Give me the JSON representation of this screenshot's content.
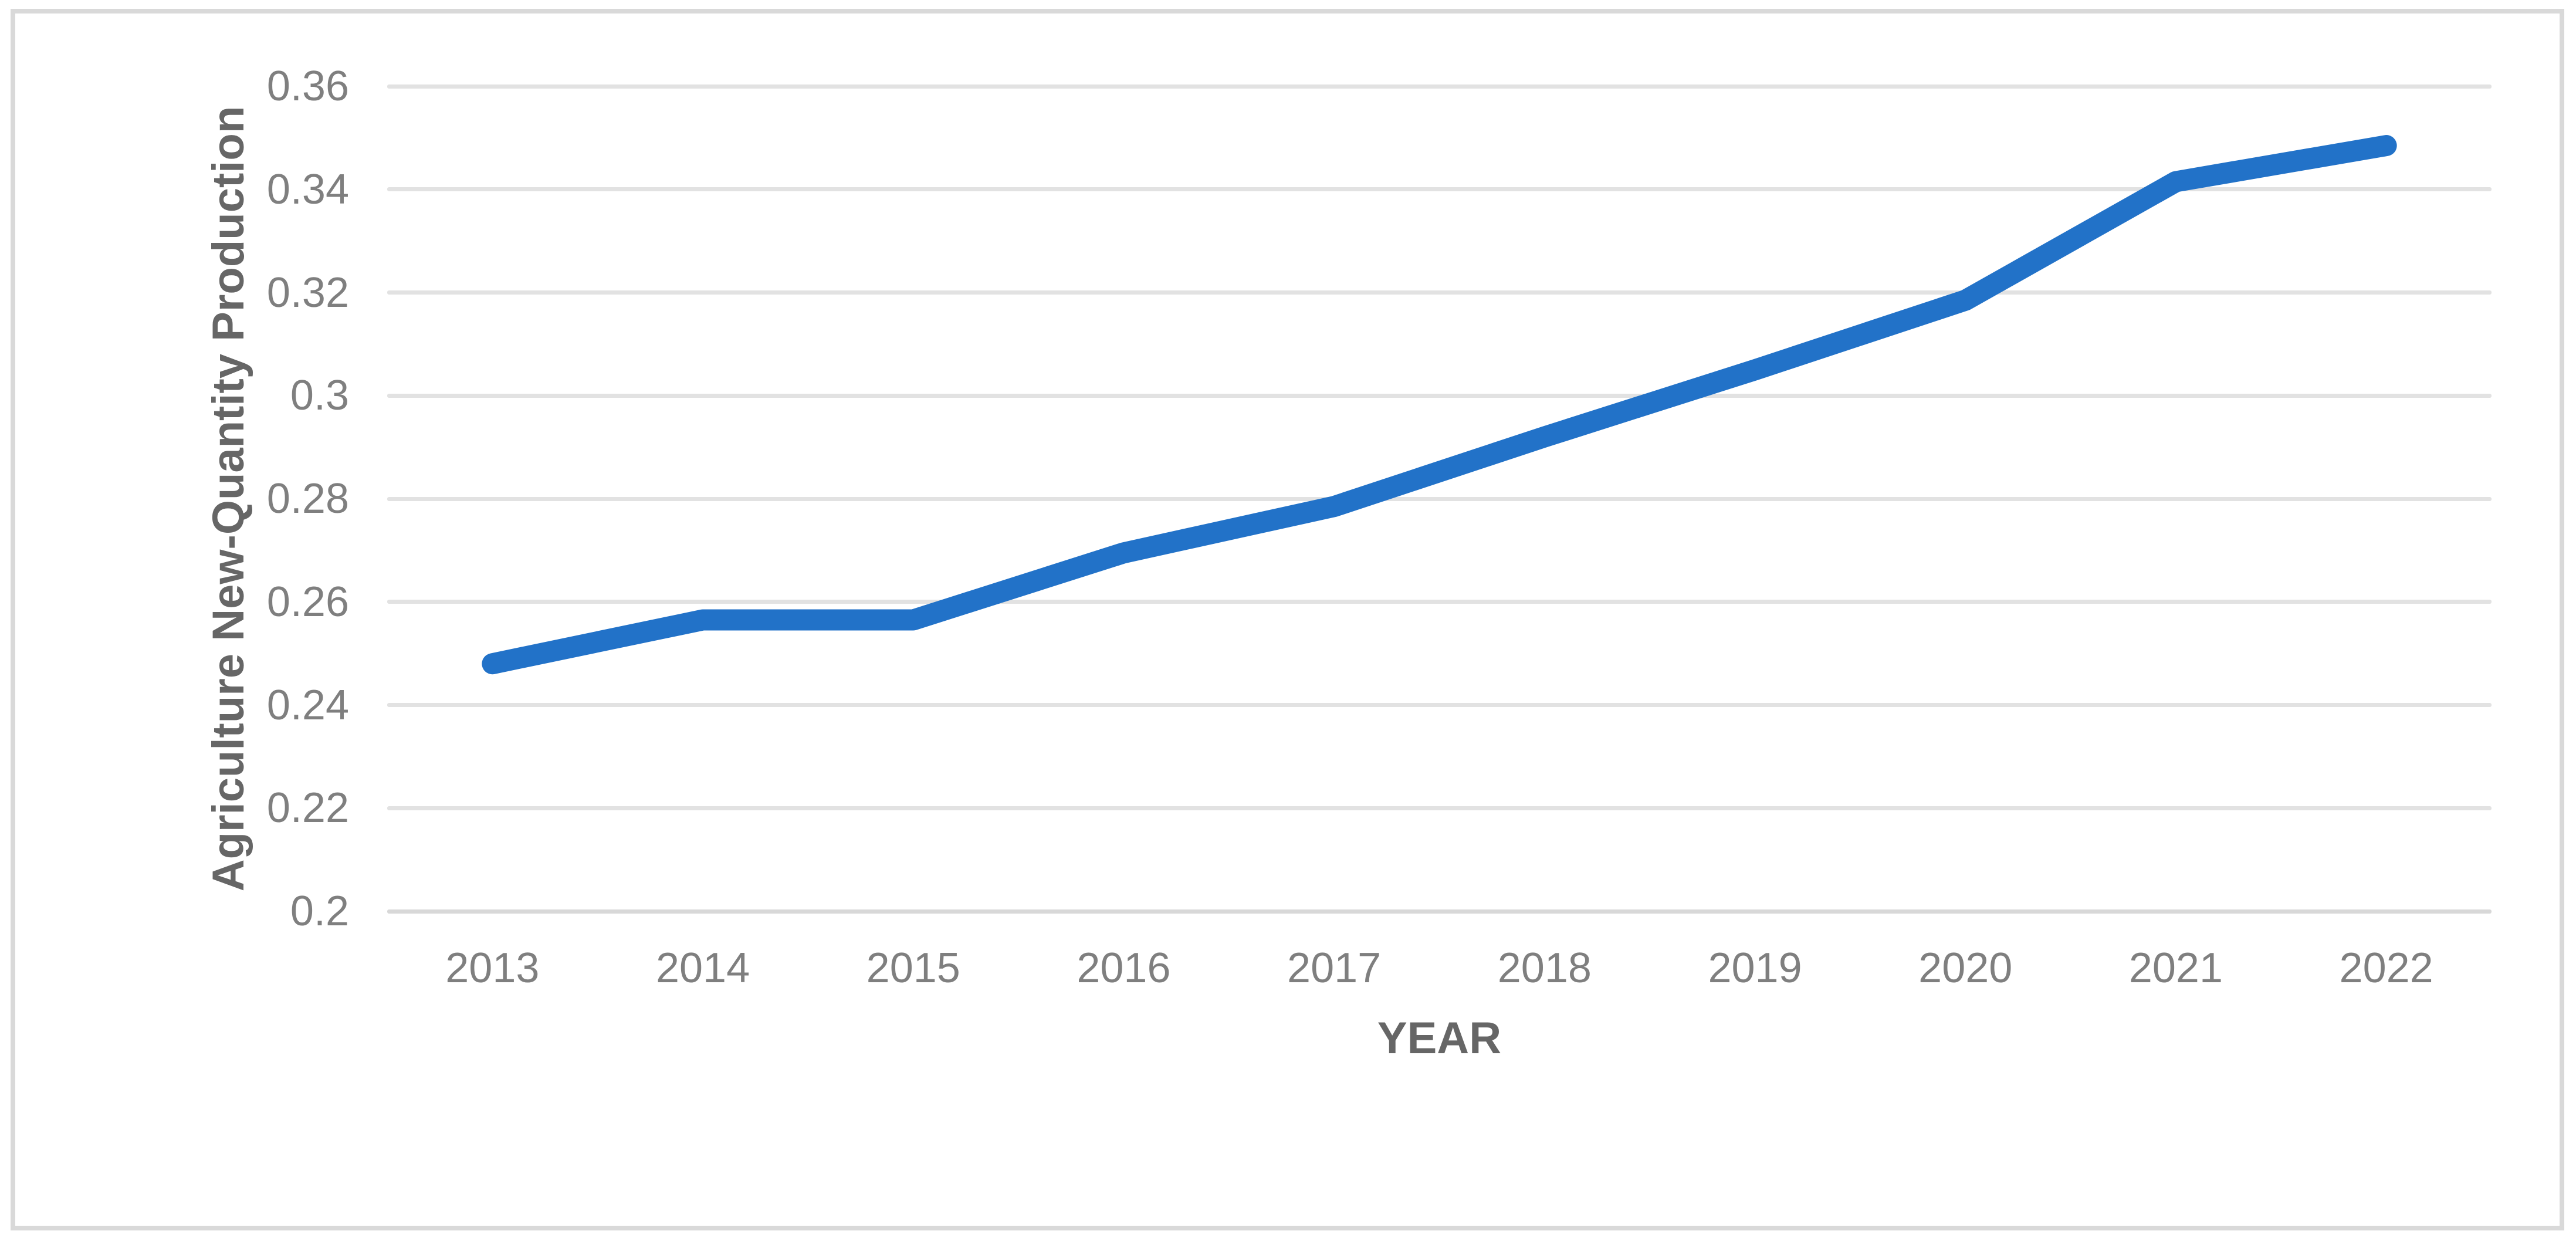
{
  "chart_data": {
    "type": "line",
    "title": "",
    "categories": [
      "2013",
      "2014",
      "2015",
      "2016",
      "2017",
      "2018",
      "2019",
      "2020",
      "2021",
      "2022"
    ],
    "series": [
      {
        "name": "Agriculture New-Quantity Production",
        "values": [
          0.248,
          0.2565,
          0.2565,
          0.2695,
          0.2785,
          0.292,
          0.305,
          0.3185,
          0.3415,
          0.3485
        ]
      }
    ],
    "xlabel": "YEAR",
    "ylabel": "Agriculture New-Quantity Production",
    "ylim": [
      0.2,
      0.36
    ],
    "yticks": [
      {
        "value": 0.36,
        "label": "0.36"
      },
      {
        "value": 0.34,
        "label": "0.34"
      },
      {
        "value": 0.32,
        "label": "0.32"
      },
      {
        "value": 0.3,
        "label": "0.3"
      },
      {
        "value": 0.28,
        "label": "0.28"
      },
      {
        "value": 0.26,
        "label": "0.26"
      },
      {
        "value": 0.24,
        "label": "0.24"
      },
      {
        "value": 0.22,
        "label": "0.22"
      },
      {
        "value": 0.2,
        "label": "0.2"
      }
    ],
    "grid": true,
    "legend": "none",
    "colors": {
      "line": "#2272C8",
      "gridline": "#E2E2E2",
      "bottom_gridline": "#D8D8D8",
      "frame_border": "#D9D9D9",
      "tick_label": "#7F7F7F",
      "axis_title": "#666666",
      "background": "#FFFFFF"
    }
  }
}
